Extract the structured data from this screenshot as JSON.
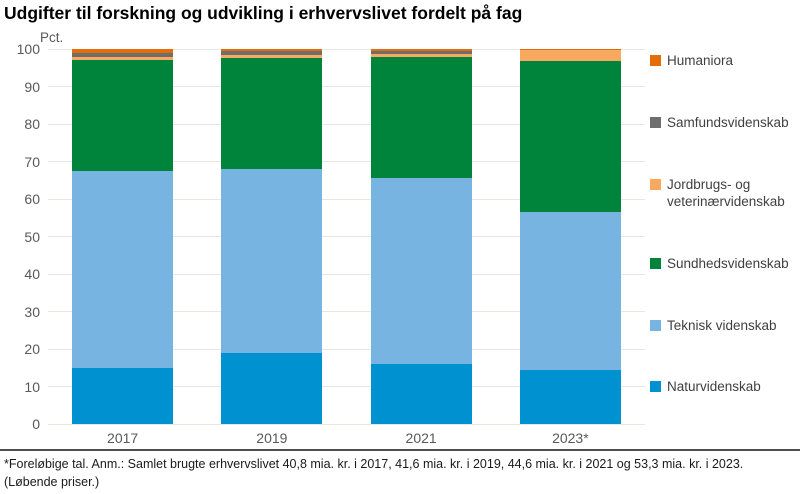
{
  "title": "Udgifter til forskning og udvikling i erhvervslivet fordelt på fag",
  "footnote": "*Foreløbige tal. Anm.: Samlet brugte erhvervslivet 40,8 mia. kr. i 2017, 41,6 mia. kr. i 2019, 44,6 mia. kr. i 2021 og 53,3 mia. kr. i 2023. (Løbende priser.)",
  "chart_data": {
    "type": "bar",
    "stacked": true,
    "title": "Udgifter til forskning og udvikling i erhvervslivet fordelt på fag",
    "ylabel": "Pct.",
    "xlabel": "",
    "ylim": [
      0,
      100
    ],
    "yticks": [
      0,
      10,
      20,
      30,
      40,
      50,
      60,
      70,
      80,
      90,
      100
    ],
    "grid": true,
    "legend_position": "right",
    "categories": [
      "2017",
      "2019",
      "2021",
      "2023*"
    ],
    "series": [
      {
        "name": "Naturvidenskab",
        "color": "#0092d0",
        "values": [
          15,
          19,
          16,
          14.5
        ]
      },
      {
        "name": "Teknisk videnskab",
        "color": "#77b4e2",
        "values": [
          52.5,
          49,
          49.5,
          42
        ]
      },
      {
        "name": "Sundhedsvidenskab",
        "color": "#00843c",
        "values": [
          29.5,
          29.5,
          32.5,
          40.4
        ]
      },
      {
        "name": "Jordbrugs- og veterinærvidenskab",
        "color": "#f7aa5f",
        "values": [
          1,
          1,
          0.6,
          2.8
        ]
      },
      {
        "name": "Samfundsvidenskab",
        "color": "#6e6e6e",
        "values": [
          1,
          1,
          0.9,
          0
        ]
      },
      {
        "name": "Humaniora",
        "color": "#e66c0a",
        "values": [
          1,
          0.5,
          0.5,
          0.3
        ]
      }
    ],
    "legend_order": [
      "Humaniora",
      "Samfundsvidenskab",
      "Jordbrugs- og veterinærvidenskab",
      "Sundhedsvidenskab",
      "Teknisk videnskab",
      "Naturvidenskab"
    ]
  }
}
